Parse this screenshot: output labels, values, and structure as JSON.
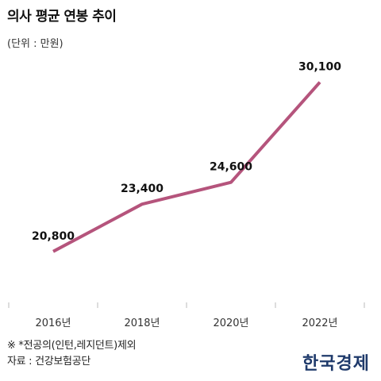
{
  "chart_data": {
    "type": "line",
    "title": "의사 평균 연봉 추이",
    "unit": "(단위 : 만원)",
    "categories": [
      "2016년",
      "2018년",
      "2020년",
      "2022년"
    ],
    "series": [
      {
        "values": [
          20800,
          23400,
          24600,
          30100
        ],
        "labels": [
          "20,800",
          "23,400",
          "24,600",
          "30,100"
        ],
        "color": "#b5547c"
      }
    ],
    "ylim": [
      18000,
      32000
    ],
    "grid": false,
    "legend": "none"
  },
  "footnote": "※ *전공의(인턴,레지던트)제외",
  "source": "자료 : 건강보험공단",
  "brand": "한국경제"
}
